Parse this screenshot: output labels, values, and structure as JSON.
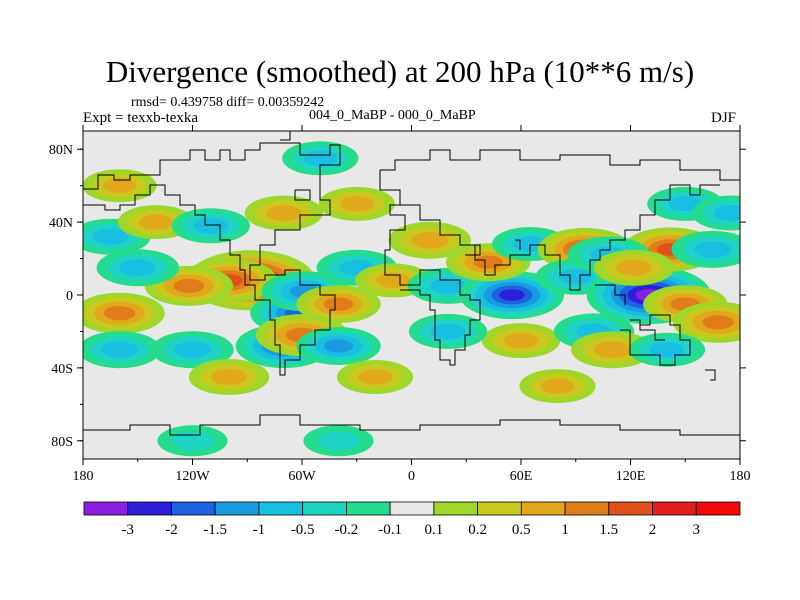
{
  "title": "Divergence (smoothed) at 200 hPa (10**6 m/s)",
  "stats": "rmsd= 0.439758 diff= 0.00359242",
  "experiment": "Expt = texxb-texka",
  "subtitle": "004_0_MaBP - 000_0_MaBP",
  "season": "DJF",
  "chart_data": {
    "type": "heatmap",
    "subtype": "filled contour map, equidistant cylindrical projection",
    "lon_range": [
      -180,
      180
    ],
    "lat_range": [
      -90,
      90
    ],
    "x_ticks": [
      {
        "value": -180,
        "label": "180"
      },
      {
        "value": -120,
        "label": "120W"
      },
      {
        "value": -60,
        "label": "60W"
      },
      {
        "value": 0,
        "label": "0"
      },
      {
        "value": 60,
        "label": "60E"
      },
      {
        "value": 120,
        "label": "120E"
      },
      {
        "value": 180,
        "label": "180"
      }
    ],
    "y_ticks": [
      {
        "value": 80,
        "label": "80N"
      },
      {
        "value": 40,
        "label": "40N"
      },
      {
        "value": 0,
        "label": "0"
      },
      {
        "value": -40,
        "label": "40S"
      },
      {
        "value": -80,
        "label": "80S"
      }
    ],
    "colorbar": {
      "labels": [
        "-3",
        "-2",
        "-1.5",
        "-1",
        "-0.5",
        "-0.2",
        "-0.1",
        "0.1",
        "0.2",
        "0.5",
        "1",
        "1.5",
        "2",
        "3"
      ],
      "colors": [
        "#8a1fe3",
        "#2b1fd8",
        "#1d62e0",
        "#1a9be0",
        "#19bfe0",
        "#1fd4c4",
        "#24dc8c",
        "#e8e8e8",
        "#9ed62a",
        "#c8c81e",
        "#e0a81a",
        "#e07c1a",
        "#e0501c",
        "#e01e1e",
        "#f00a0a"
      ]
    },
    "features": [
      {
        "lon": -88,
        "lat": 8,
        "value": 3.2
      },
      {
        "lon": -100,
        "lat": 8,
        "value": 1.6
      },
      {
        "lon": -122,
        "lat": 5,
        "value": 1.2
      },
      {
        "lon": -62,
        "lat": -10,
        "value": -1.6
      },
      {
        "lon": -58,
        "lat": 2,
        "value": -1.2
      },
      {
        "lon": -40,
        "lat": -5,
        "value": 1.0
      },
      {
        "lon": -70,
        "lat": -28,
        "value": -1.6
      },
      {
        "lon": -60,
        "lat": -22,
        "value": 1.4
      },
      {
        "lon": -40,
        "lat": -28,
        "value": -1.0
      },
      {
        "lon": -30,
        "lat": 15,
        "value": -0.8
      },
      {
        "lon": -10,
        "lat": 8,
        "value": 0.6
      },
      {
        "lon": 20,
        "lat": 5,
        "value": -0.8
      },
      {
        "lon": 55,
        "lat": 0,
        "value": -2.0
      },
      {
        "lon": 42,
        "lat": 18,
        "value": 1.0
      },
      {
        "lon": 10,
        "lat": 30,
        "value": 0.9
      },
      {
        "lon": 65,
        "lat": 28,
        "value": -0.6
      },
      {
        "lon": 95,
        "lat": 25,
        "value": 1.5
      },
      {
        "lon": 90,
        "lat": 10,
        "value": -0.8
      },
      {
        "lon": 130,
        "lat": 0,
        "value": -3.0
      },
      {
        "lon": 150,
        "lat": -5,
        "value": 1.0
      },
      {
        "lon": 168,
        "lat": -15,
        "value": 1.3
      },
      {
        "lon": 142,
        "lat": 25,
        "value": 1.6
      },
      {
        "lon": 165,
        "lat": 25,
        "value": -0.9
      },
      {
        "lon": 108,
        "lat": 22,
        "value": -0.9
      },
      {
        "lon": 122,
        "lat": 15,
        "value": 0.8
      },
      {
        "lon": -160,
        "lat": -10,
        "value": 1.3
      },
      {
        "lon": -150,
        "lat": 15,
        "value": -0.9
      },
      {
        "lon": -165,
        "lat": 32,
        "value": -0.8
      },
      {
        "lon": -140,
        "lat": 40,
        "value": 0.6
      },
      {
        "lon": -110,
        "lat": 38,
        "value": -0.7
      },
      {
        "lon": -70,
        "lat": 45,
        "value": 0.7
      },
      {
        "lon": -30,
        "lat": 50,
        "value": 0.6
      },
      {
        "lon": -50,
        "lat": 75,
        "value": -0.6
      },
      {
        "lon": -160,
        "lat": 60,
        "value": 0.5
      },
      {
        "lon": 60,
        "lat": -25,
        "value": 0.7
      },
      {
        "lon": 20,
        "lat": -20,
        "value": -0.7
      },
      {
        "lon": 100,
        "lat": -20,
        "value": -0.8
      },
      {
        "lon": 110,
        "lat": -30,
        "value": 0.9
      },
      {
        "lon": 140,
        "lat": -30,
        "value": -0.6
      },
      {
        "lon": -160,
        "lat": -30,
        "value": -0.9
      },
      {
        "lon": -120,
        "lat": -30,
        "value": -0.9
      },
      {
        "lon": -100,
        "lat": -45,
        "value": 0.8
      },
      {
        "lon": -20,
        "lat": -45,
        "value": 0.6
      },
      {
        "lon": 80,
        "lat": -50,
        "value": 0.6
      },
      {
        "lon": 150,
        "lat": 50,
        "value": -0.6
      },
      {
        "lon": 175,
        "lat": 45,
        "value": -0.7
      },
      {
        "lon": -120,
        "lat": -80,
        "value": -0.3
      },
      {
        "lon": -40,
        "lat": -80,
        "value": -0.3
      }
    ]
  }
}
